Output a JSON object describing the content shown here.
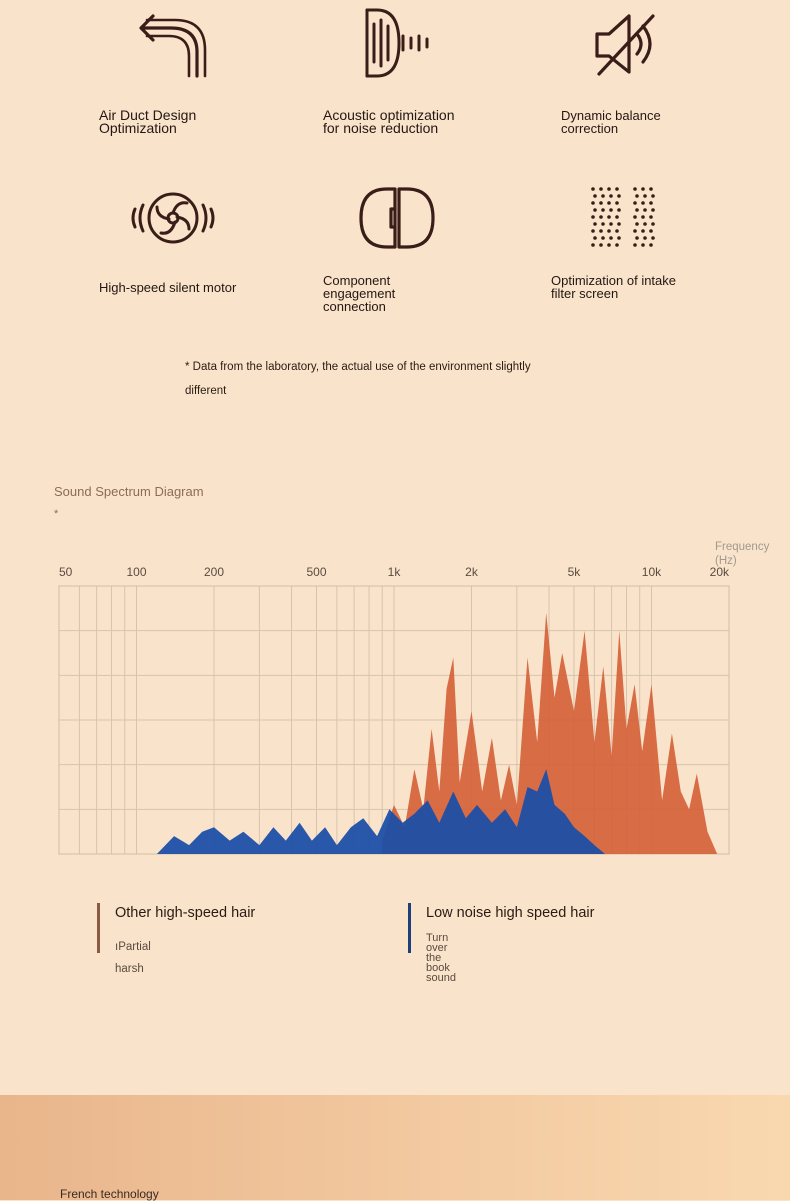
{
  "features": [
    {
      "id": "air-duct",
      "icon": "arrow-return-icon",
      "label": "Air Duct Design\nOptimization"
    },
    {
      "id": "acoustic",
      "icon": "sound-wave-icon",
      "label": "Acoustic optimization\nfor noise reduction"
    },
    {
      "id": "balance",
      "icon": "muted-speaker-icon",
      "label": "Dynamic balance\ncorrection"
    },
    {
      "id": "motor",
      "icon": "fan-motor-icon",
      "label": "High-speed silent motor"
    },
    {
      "id": "engagement",
      "icon": "connector-icon",
      "label": "Component\nengagement\nconnection"
    },
    {
      "id": "filter",
      "icon": "filter-screen-icon",
      "label": "Optimization of intake\nfilter screen"
    }
  ],
  "note": "* Data from the laboratory, the actual use of the environment slightly different",
  "spectrum": {
    "title": "Sound Spectrum Diagram",
    "star": "*",
    "frequency_label": "Frequency\n(Hz)"
  },
  "chart_data": {
    "type": "area",
    "title": "Sound Spectrum Diagram",
    "xlabel": "Frequency (Hz)",
    "x_scale": "log",
    "x_ticks": [
      "50",
      "100",
      "200",
      "500",
      "1k",
      "2k",
      "5k",
      "10k",
      "20k"
    ],
    "grid": true,
    "y_axis_labels": false,
    "ylim": [
      0,
      6
    ],
    "series": [
      {
        "name": "Other high-speed hair",
        "color": "#d4623a",
        "x": [
          900,
          1000,
          1100,
          1200,
          1300,
          1400,
          1500,
          1600,
          1700,
          1800,
          2000,
          2200,
          2400,
          2600,
          2800,
          3000,
          3300,
          3600,
          3900,
          4200,
          4500,
          5000,
          5500,
          6000,
          6500,
          7000,
          7500,
          8000,
          8600,
          9200,
          10000,
          11000,
          12000,
          13000,
          14000,
          15000,
          16500,
          18000
        ],
        "values": [
          0.3,
          1.1,
          0.6,
          1.9,
          1.0,
          2.8,
          1.4,
          3.7,
          4.4,
          1.6,
          3.2,
          1.4,
          2.6,
          1.2,
          2.0,
          1.1,
          4.4,
          2.5,
          5.4,
          3.5,
          4.5,
          3.2,
          5.0,
          2.5,
          4.2,
          2.2,
          5.0,
          2.8,
          3.8,
          2.3,
          3.8,
          1.2,
          2.7,
          1.4,
          1.0,
          1.8,
          0.5,
          0.0
        ]
      },
      {
        "name": "Low noise high speed hair",
        "color": "#1e4fa6",
        "x": [
          120,
          140,
          160,
          180,
          200,
          230,
          260,
          300,
          340,
          380,
          430,
          480,
          540,
          600,
          680,
          760,
          860,
          960,
          1080,
          1200,
          1350,
          1500,
          1700,
          1900,
          2100,
          2400,
          2700,
          3000,
          3300,
          3600,
          3900,
          4200,
          4600,
          5000,
          5500,
          6000,
          6600
        ],
        "values": [
          0.0,
          0.4,
          0.2,
          0.5,
          0.6,
          0.3,
          0.5,
          0.2,
          0.6,
          0.3,
          0.7,
          0.3,
          0.6,
          0.2,
          0.6,
          0.8,
          0.4,
          1.0,
          0.7,
          0.9,
          1.2,
          0.7,
          1.4,
          0.8,
          1.1,
          0.7,
          1.0,
          0.6,
          1.5,
          1.4,
          1.9,
          1.1,
          0.9,
          0.6,
          0.4,
          0.2,
          0.0
        ]
      }
    ],
    "legend_placement": "bottom"
  },
  "legend": [
    {
      "name": "Other high-speed hair",
      "desc": "ıPartial\nharsh",
      "color": "#8a5a44"
    },
    {
      "name": "Low noise high speed hair",
      "desc": "Turn over\nthe book\nsound",
      "color": "#1e3f78"
    }
  ],
  "bottom_banner": {
    "text": "French technology"
  }
}
